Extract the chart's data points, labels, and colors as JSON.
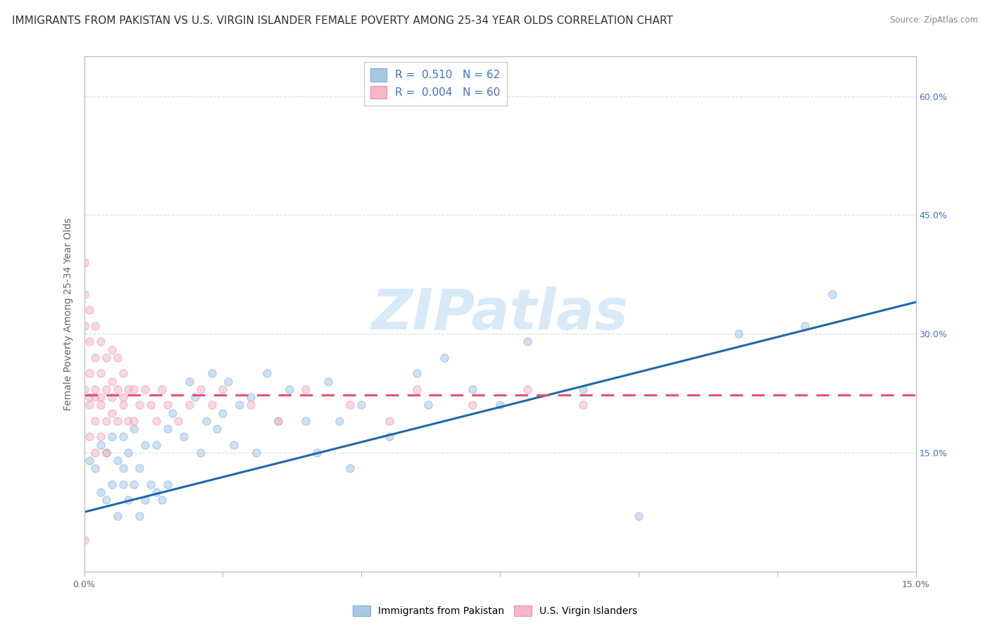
{
  "title": "IMMIGRANTS FROM PAKISTAN VS U.S. VIRGIN ISLANDER FEMALE POVERTY AMONG 25-34 YEAR OLDS CORRELATION CHART",
  "source": "Source: ZipAtlas.com",
  "ylabel": "Female Poverty Among 25-34 Year Olds",
  "xlim": [
    0.0,
    0.15
  ],
  "ylim": [
    0.0,
    0.65
  ],
  "xticks": [
    0.0,
    0.025,
    0.05,
    0.075,
    0.1,
    0.125,
    0.15
  ],
  "yticks": [
    0.0,
    0.15,
    0.3,
    0.45,
    0.6
  ],
  "ytick_labels": [
    "",
    "15.0%",
    "30.0%",
    "45.0%",
    "60.0%"
  ],
  "blue_R": 0.51,
  "blue_N": 62,
  "pink_R": 0.004,
  "pink_N": 60,
  "blue_color": "#a8c8e8",
  "pink_color": "#f4b8c8",
  "blue_edge_color": "#7aacd4",
  "pink_edge_color": "#e890a8",
  "blue_line_color": "#2166ac",
  "pink_line_color": "#e05570",
  "watermark": "ZIPatlas",
  "watermark_color": "#d8eaf8",
  "blue_scatter_x": [
    0.001,
    0.002,
    0.003,
    0.003,
    0.004,
    0.004,
    0.005,
    0.005,
    0.006,
    0.006,
    0.007,
    0.007,
    0.007,
    0.008,
    0.008,
    0.009,
    0.009,
    0.01,
    0.01,
    0.011,
    0.011,
    0.012,
    0.013,
    0.013,
    0.014,
    0.015,
    0.015,
    0.016,
    0.018,
    0.019,
    0.02,
    0.021,
    0.022,
    0.023,
    0.024,
    0.025,
    0.026,
    0.027,
    0.028,
    0.03,
    0.031,
    0.033,
    0.035,
    0.037,
    0.04,
    0.042,
    0.044,
    0.046,
    0.048,
    0.05,
    0.055,
    0.06,
    0.062,
    0.065,
    0.07,
    0.075,
    0.08,
    0.09,
    0.1,
    0.118,
    0.13,
    0.135
  ],
  "blue_scatter_y": [
    0.14,
    0.13,
    0.1,
    0.16,
    0.09,
    0.15,
    0.11,
    0.17,
    0.07,
    0.14,
    0.11,
    0.13,
    0.17,
    0.09,
    0.15,
    0.11,
    0.18,
    0.07,
    0.13,
    0.09,
    0.16,
    0.11,
    0.1,
    0.16,
    0.09,
    0.11,
    0.18,
    0.2,
    0.17,
    0.24,
    0.22,
    0.15,
    0.19,
    0.25,
    0.18,
    0.2,
    0.24,
    0.16,
    0.21,
    0.22,
    0.15,
    0.25,
    0.19,
    0.23,
    0.19,
    0.15,
    0.24,
    0.19,
    0.13,
    0.21,
    0.17,
    0.25,
    0.21,
    0.27,
    0.23,
    0.21,
    0.29,
    0.23,
    0.07,
    0.3,
    0.31,
    0.35
  ],
  "pink_scatter_x": [
    0.0,
    0.0,
    0.0,
    0.0,
    0.0,
    0.001,
    0.001,
    0.001,
    0.001,
    0.001,
    0.001,
    0.002,
    0.002,
    0.002,
    0.002,
    0.002,
    0.002,
    0.003,
    0.003,
    0.003,
    0.003,
    0.003,
    0.004,
    0.004,
    0.004,
    0.004,
    0.005,
    0.005,
    0.005,
    0.005,
    0.006,
    0.006,
    0.006,
    0.007,
    0.007,
    0.007,
    0.008,
    0.008,
    0.009,
    0.009,
    0.01,
    0.011,
    0.012,
    0.013,
    0.014,
    0.015,
    0.017,
    0.019,
    0.021,
    0.023,
    0.025,
    0.03,
    0.035,
    0.04,
    0.048,
    0.055,
    0.06,
    0.07,
    0.08,
    0.09
  ],
  "pink_scatter_y": [
    0.39,
    0.35,
    0.31,
    0.23,
    0.04,
    0.33,
    0.29,
    0.25,
    0.21,
    0.17,
    0.22,
    0.31,
    0.27,
    0.23,
    0.19,
    0.15,
    0.22,
    0.29,
    0.25,
    0.21,
    0.17,
    0.22,
    0.27,
    0.23,
    0.19,
    0.15,
    0.28,
    0.24,
    0.2,
    0.22,
    0.27,
    0.23,
    0.19,
    0.25,
    0.21,
    0.22,
    0.23,
    0.19,
    0.23,
    0.19,
    0.21,
    0.23,
    0.21,
    0.19,
    0.23,
    0.21,
    0.19,
    0.21,
    0.23,
    0.21,
    0.23,
    0.21,
    0.19,
    0.23,
    0.21,
    0.19,
    0.23,
    0.21,
    0.23,
    0.21
  ],
  "blue_trend_x": [
    0.0,
    0.15
  ],
  "blue_trend_y": [
    0.075,
    0.34
  ],
  "pink_trend_y_val": 0.223,
  "grid_color": "#dddddd",
  "background_color": "#ffffff",
  "title_fontsize": 11,
  "axis_label_fontsize": 10,
  "tick_fontsize": 9,
  "scatter_size": 65,
  "scatter_alpha": 0.55,
  "line_width": 2.2
}
